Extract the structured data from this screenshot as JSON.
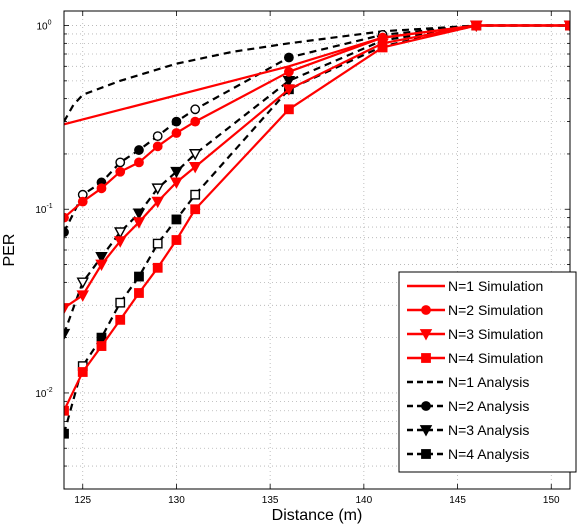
{
  "chart_data": {
    "type": "line",
    "title": "",
    "xlabel": "Distance (m)",
    "ylabel": "PER",
    "xlim": [
      124,
      151
    ],
    "ylim": [
      0.003,
      1.2
    ],
    "yscale": "log",
    "grid": true,
    "legend": "bottom-right",
    "x_ticks": [
      125,
      130,
      135,
      140,
      145,
      150
    ],
    "x_tick_labels": [
      "125",
      "130",
      "135",
      "140",
      "145",
      "150"
    ],
    "y_ticks": [
      0.01,
      0.1,
      1
    ],
    "y_tick_labels": [
      [
        "10",
        "-2"
      ],
      [
        "10",
        "-1"
      ],
      [
        "10",
        "0"
      ]
    ],
    "series": [
      {
        "name": "N=1 Simulation",
        "color": "#ff0000",
        "line": "solid",
        "marker": "none",
        "x": [
          124,
          136,
          141,
          146,
          151
        ],
        "y": [
          0.29,
          0.6,
          0.86,
          1.0,
          1.0
        ]
      },
      {
        "name": "N=2 Simulation",
        "color": "#ff0000",
        "line": "solid",
        "marker": "circle",
        "x": [
          124,
          125,
          126,
          127,
          128,
          129,
          130,
          131,
          136,
          141,
          146,
          151
        ],
        "y": [
          0.09,
          0.11,
          0.13,
          0.16,
          0.18,
          0.22,
          0.26,
          0.3,
          0.56,
          0.86,
          1.0,
          1.0
        ]
      },
      {
        "name": "N=3 Simulation",
        "color": "#ff0000",
        "line": "solid",
        "marker": "triangle-down",
        "x": [
          124,
          125,
          126,
          127,
          128,
          129,
          130,
          131,
          136,
          141,
          146,
          151
        ],
        "y": [
          0.029,
          0.034,
          0.05,
          0.067,
          0.085,
          0.11,
          0.14,
          0.17,
          0.45,
          0.8,
          1.0,
          1.0
        ]
      },
      {
        "name": "N=4 Simulation",
        "color": "#ff0000",
        "line": "solid",
        "marker": "square",
        "x": [
          124,
          125,
          126,
          127,
          128,
          129,
          130,
          131,
          136,
          141,
          146,
          151
        ],
        "y": [
          0.008,
          0.013,
          0.018,
          0.025,
          0.035,
          0.048,
          0.068,
          0.1,
          0.35,
          0.76,
          1.0,
          1.0
        ]
      },
      {
        "name": "N=1 Analysis",
        "color": "#000000",
        "line": "dashed",
        "marker": "none",
        "x": [
          124,
          124.5,
          125,
          127,
          130,
          133,
          136,
          141,
          146,
          151
        ],
        "y": [
          0.3,
          0.37,
          0.42,
          0.5,
          0.62,
          0.72,
          0.8,
          0.93,
          1.0,
          1.0
        ]
      },
      {
        "name": "N=2 Analysis",
        "color": "#000000",
        "line": "dashed",
        "marker": "circle-mixed",
        "x": [
          124,
          125,
          126,
          127,
          128,
          129,
          130,
          131,
          136,
          141,
          146,
          151
        ],
        "y": [
          0.075,
          0.12,
          0.14,
          0.18,
          0.21,
          0.25,
          0.3,
          0.35,
          0.67,
          0.89,
          1.0,
          1.0
        ]
      },
      {
        "name": "N=3 Analysis",
        "color": "#000000",
        "line": "dashed",
        "marker": "triangle-down-mixed",
        "x": [
          124,
          125,
          126,
          127,
          128,
          129,
          130,
          131,
          136,
          141,
          146,
          151
        ],
        "y": [
          0.021,
          0.04,
          0.055,
          0.075,
          0.095,
          0.13,
          0.16,
          0.2,
          0.5,
          0.83,
          1.0,
          1.0
        ]
      },
      {
        "name": "N=4 Analysis",
        "color": "#000000",
        "line": "dashed",
        "marker": "square-mixed",
        "x": [
          124,
          125,
          126,
          127,
          128,
          129,
          130,
          131,
          136,
          141,
          146,
          151
        ],
        "y": [
          0.006,
          0.014,
          0.02,
          0.031,
          0.043,
          0.065,
          0.088,
          0.12,
          0.45,
          0.77,
          1.0,
          1.0
        ]
      }
    ]
  }
}
